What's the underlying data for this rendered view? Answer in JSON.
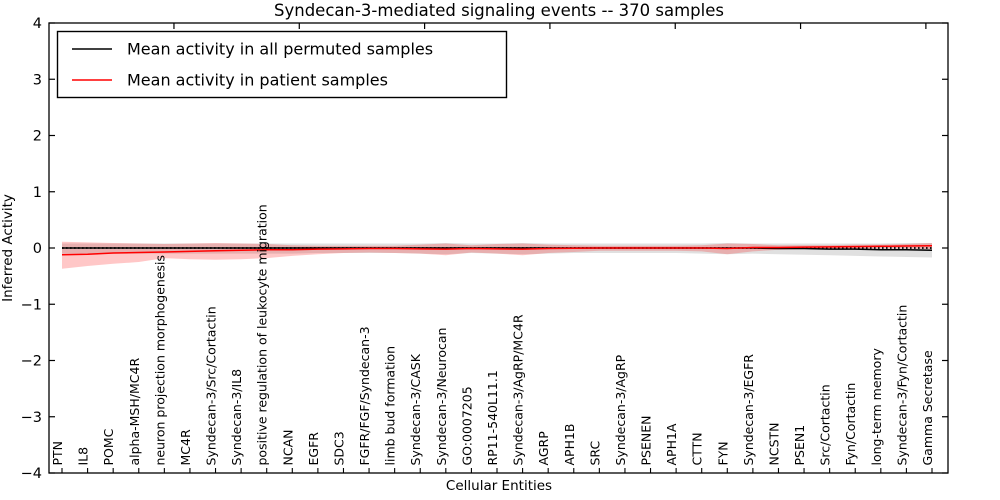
{
  "window": {
    "title": "Syndecan-3-mediated signaling events -- 370 samples"
  },
  "legend": {
    "position": "upper-left",
    "items": [
      {
        "label": "Mean activity in all permuted samples",
        "color": "#000000"
      },
      {
        "label": "Mean activity in patient samples",
        "color": "#ff0000"
      }
    ]
  },
  "chart_data": {
    "type": "line",
    "title": "Syndecan-3-mediated signaling events -- 370 samples",
    "xlabel": "Cellular Entities",
    "ylabel": "Inferred Activity",
    "ylim": [
      -4,
      4
    ],
    "yticks": [
      {
        "value": 4,
        "label": "4"
      },
      {
        "value": 3,
        "label": "3"
      },
      {
        "value": 2,
        "label": "2"
      },
      {
        "value": 1,
        "label": "1"
      },
      {
        "value": 0,
        "label": "0"
      },
      {
        "value": -1,
        "label": "−1"
      },
      {
        "value": -2,
        "label": "−2"
      },
      {
        "value": -3,
        "label": "−3"
      },
      {
        "value": -4,
        "label": "−4"
      }
    ],
    "grid": false,
    "legend_position": "upper-left",
    "categories": [
      "PTN",
      "IL8",
      "POMC",
      "alpha-MSH/MC4R",
      "neuron projection morphogenesis",
      "MC4R",
      "Syndecan-3/Src/Cortactin",
      "Syndecan-3/IL8",
      "positive regulation of leukocyte migration",
      "NCAN",
      "EGFR",
      "SDC3",
      "FGFR/FGF/Syndecan-3",
      "limb bud formation",
      "Syndecan-3/CASK",
      "Syndecan-3/Neurocan",
      "GO:0007205",
      "RP11-540L11.1",
      "Syndecan-3/AgRP/MC4R",
      "AGRP",
      "APH1B",
      "SRC",
      "Syndecan-3/AgRP",
      "PSENEN",
      "APH1A",
      "CTTN",
      "FYN",
      "Syndecan-3/EGFR",
      "NCSTN",
      "PSEN1",
      "Src/Cortactin",
      "Fyn/Cortactin",
      "long-term memory",
      "Syndecan-3/Fyn/Cortactin",
      "Gamma Secretase"
    ],
    "series": [
      {
        "name": "Mean activity in all permuted samples",
        "color": "#000000",
        "style": "solid",
        "values": [
          0,
          0,
          0,
          0,
          0,
          0,
          0,
          0,
          0,
          0,
          0,
          0,
          0,
          0,
          0,
          0,
          0,
          0,
          0,
          0,
          0,
          0,
          0,
          0,
          0,
          0,
          0,
          0,
          -0.01,
          -0.01,
          -0.02,
          -0.02,
          -0.03,
          -0.03,
          -0.04
        ]
      },
      {
        "name": "Mean activity in patient samples",
        "color": "#ff0000",
        "style": "solid",
        "values": [
          -0.12,
          -0.11,
          -0.09,
          -0.08,
          -0.07,
          -0.06,
          -0.05,
          -0.04,
          -0.03,
          -0.03,
          -0.02,
          -0.015,
          -0.01,
          -0.01,
          -0.015,
          -0.02,
          -0.01,
          -0.015,
          -0.02,
          -0.01,
          -0.005,
          0,
          0,
          0,
          0,
          0,
          -0.01,
          0.01,
          0.01,
          0.015,
          0.02,
          0.025,
          0.03,
          0.035,
          0.04
        ]
      }
    ],
    "bands": [
      {
        "name": "permuted-std-band",
        "fill": "rgba(0,0,0,0.12)",
        "upper": [
          0.08,
          0.08,
          0.08,
          0.08,
          0.08,
          0.08,
          0.08,
          0.08,
          0.08,
          0.08,
          0.08,
          0.08,
          0.08,
          0.08,
          0.08,
          0.09,
          0.08,
          0.08,
          0.09,
          0.08,
          0.08,
          0.08,
          0.08,
          0.08,
          0.08,
          0.08,
          0.09,
          0.08,
          0.08,
          0.08,
          0.08,
          0.08,
          0.08,
          0.09,
          0.09
        ],
        "lower": [
          -0.1,
          -0.1,
          -0.1,
          -0.1,
          -0.1,
          -0.1,
          -0.1,
          -0.1,
          -0.1,
          -0.1,
          -0.09,
          -0.09,
          -0.09,
          -0.09,
          -0.1,
          -0.11,
          -0.09,
          -0.1,
          -0.11,
          -0.1,
          -0.09,
          -0.09,
          -0.09,
          -0.09,
          -0.09,
          -0.1,
          -0.11,
          -0.1,
          -0.11,
          -0.12,
          -0.13,
          -0.14,
          -0.15,
          -0.16,
          -0.17
        ]
      },
      {
        "name": "patient-std-band",
        "fill": "rgba(255,0,0,0.22)",
        "upper": [
          0.11,
          0.1,
          0.09,
          0.08,
          0.07,
          0.08,
          0.09,
          0.08,
          0.07,
          0.05,
          0.04,
          0.04,
          0.04,
          0.04,
          0.06,
          0.08,
          0.05,
          0.07,
          0.08,
          0.06,
          0.05,
          0.04,
          0.04,
          0.04,
          0.04,
          0.05,
          0.08,
          0.07,
          0.05,
          0.05,
          0.05,
          0.06,
          0.06,
          0.07,
          0.09
        ],
        "lower": [
          -0.37,
          -0.32,
          -0.28,
          -0.25,
          -0.18,
          -0.2,
          -0.21,
          -0.2,
          -0.18,
          -0.14,
          -0.11,
          -0.09,
          -0.08,
          -0.09,
          -0.1,
          -0.13,
          -0.08,
          -0.1,
          -0.13,
          -0.09,
          -0.07,
          -0.05,
          -0.05,
          -0.05,
          -0.05,
          -0.06,
          -0.11,
          -0.06,
          -0.03,
          -0.02,
          -0.02,
          -0.01,
          -0.01,
          -0.01,
          -0.02
        ]
      }
    ],
    "zero_line": {
      "value": 0,
      "style": "dotted",
      "color": "#000000"
    }
  }
}
